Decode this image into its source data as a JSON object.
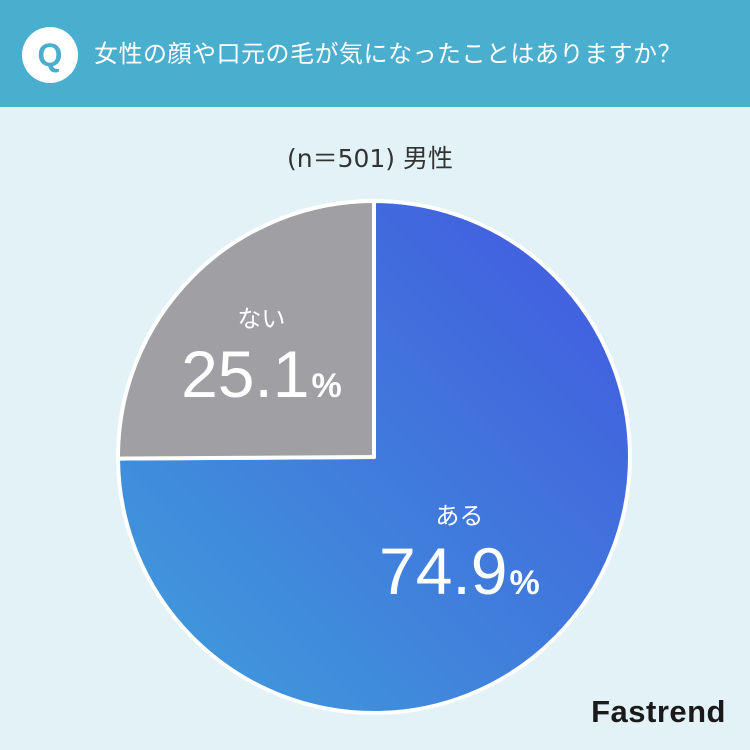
{
  "header": {
    "badge": "Q",
    "question": "女性の顔や口元の毛が気になったことはありますか？"
  },
  "sample_label": "(n＝501) 男性",
  "brand": "Fastrend",
  "colors": {
    "header_bg": "#4aaecf",
    "page_bg": "#e2f2f7",
    "yes_gradient_start": "#3f9fdb",
    "yes_gradient_end": "#4257de",
    "no_slice": "#a0a0a4"
  },
  "chart_data": {
    "type": "pie",
    "categories": [
      "ある",
      "ない"
    ],
    "values": [
      74.9,
      25.1
    ],
    "value_labels": [
      "74.9",
      "25.1"
    ],
    "unit": "%",
    "start_angle": "12 o'clock, clockwise",
    "labels_on_slices": true,
    "legend": "none"
  }
}
